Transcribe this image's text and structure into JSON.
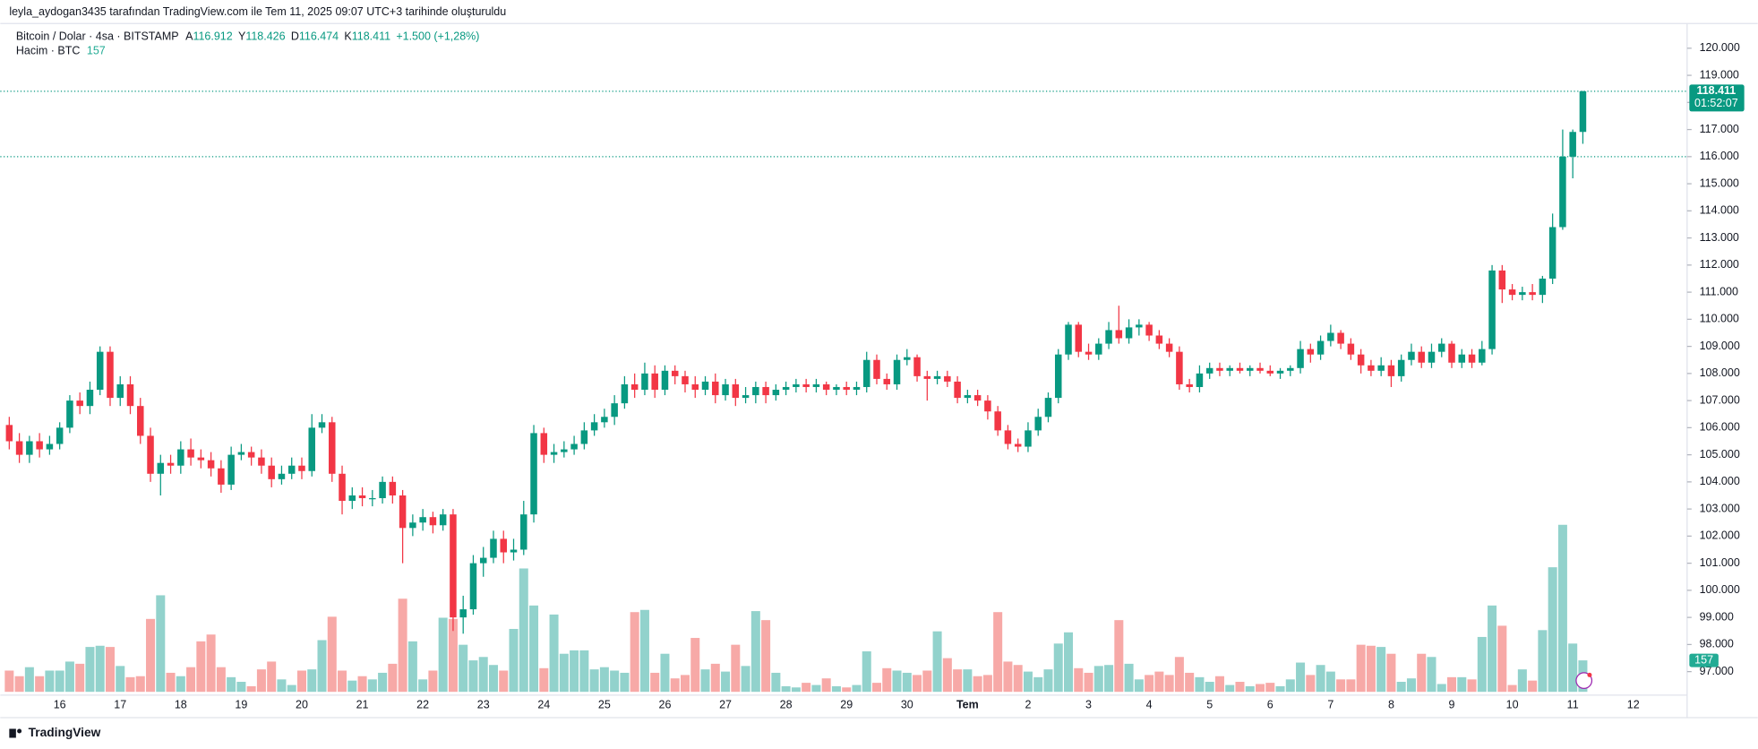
{
  "header": {
    "credit": "leyla_aydogan3435 tarafından TradingView.com ile Tem 11, 2025 09:07 UTC+3 tarihinde oluşturuldu",
    "brand": "TradingView"
  },
  "chart_data": {
    "type": "candlestick",
    "symbol": "Bitcoin / Dolar · 4sa · BITSTAMP",
    "fields": [
      {
        "key": "A",
        "text": "116.912"
      },
      {
        "key": "Y",
        "text": "118.426"
      },
      {
        "key": "D",
        "text": "116.474"
      },
      {
        "key": "K",
        "text": "118.411"
      }
    ],
    "change": "+1.500 (+1,28%)",
    "volume_title": "Hacim · BTC",
    "volume_text": "157",
    "last_price_label": "118.411",
    "countdown": "01:52:07",
    "volume_tag": "157",
    "ref_line": 116000,
    "up_color": "#089981",
    "down_color": "#f23645",
    "up_volume_color": "#92d2cc",
    "down_volume_color": "#f7a9a7",
    "grid": false,
    "xlabels": [
      "16",
      "17",
      "18",
      "19",
      "20",
      "21",
      "22",
      "23",
      "24",
      "25",
      "26",
      "27",
      "28",
      "29",
      "30",
      "Tem",
      "2",
      "3",
      "4",
      "5",
      "6",
      "7",
      "8",
      "9",
      "10",
      "11",
      "12"
    ],
    "ylim": [
      96100,
      120900
    ],
    "yticks": [
      {
        "value": 97000,
        "label": "97.000"
      },
      {
        "value": 98000,
        "label": "98.000"
      },
      {
        "value": 99000,
        "label": "99.000"
      },
      {
        "value": 100000,
        "label": "100.000"
      },
      {
        "value": 101000,
        "label": "101.000"
      },
      {
        "value": 102000,
        "label": "102.000"
      },
      {
        "value": 103000,
        "label": "103.000"
      },
      {
        "value": 104000,
        "label": "104.000"
      },
      {
        "value": 105000,
        "label": "105.000"
      },
      {
        "value": 106000,
        "label": "106.000"
      },
      {
        "value": 107000,
        "label": "107.000"
      },
      {
        "value": 108000,
        "label": "108.000"
      },
      {
        "value": 109000,
        "label": "109.000"
      },
      {
        "value": 110000,
        "label": "110.000"
      },
      {
        "value": 111000,
        "label": "111.000"
      },
      {
        "value": 112000,
        "label": "112.000"
      },
      {
        "value": 113000,
        "label": "113.000"
      },
      {
        "value": 114000,
        "label": "114.000"
      },
      {
        "value": 115000,
        "label": "115.000"
      },
      {
        "value": 116000,
        "label": "116.000"
      },
      {
        "value": 117000,
        "label": "117.000"
      },
      {
        "value": 118000,
        "label": "118.000"
      },
      {
        "value": 119000,
        "label": "119.000"
      },
      {
        "value": 120000,
        "label": "120.000"
      }
    ],
    "ohlc": [
      [
        106100,
        106400,
        105200,
        105500
      ],
      [
        105500,
        105800,
        104700,
        105000
      ],
      [
        105000,
        105700,
        104700,
        105500
      ],
      [
        105500,
        105800,
        104900,
        105200
      ],
      [
        105200,
        105700,
        105000,
        105400
      ],
      [
        105400,
        106200,
        105200,
        106000
      ],
      [
        106000,
        107200,
        105800,
        107000
      ],
      [
        107000,
        107300,
        106500,
        106800
      ],
      [
        106800,
        107700,
        106500,
        107400
      ],
      [
        107400,
        109000,
        107200,
        108800
      ],
      [
        108800,
        109000,
        106800,
        107100
      ],
      [
        107100,
        107900,
        106800,
        107600
      ],
      [
        107600,
        107900,
        106500,
        106800
      ],
      [
        106800,
        107100,
        105400,
        105700
      ],
      [
        105700,
        106000,
        104000,
        104300
      ],
      [
        104300,
        105000,
        103500,
        104700
      ],
      [
        104700,
        105000,
        104300,
        104600
      ],
      [
        104600,
        105500,
        104300,
        105200
      ],
      [
        105200,
        105600,
        104600,
        104900
      ],
      [
        104900,
        105200,
        104500,
        104800
      ],
      [
        104800,
        105100,
        104200,
        104500
      ],
      [
        104500,
        104800,
        103600,
        103900
      ],
      [
        103900,
        105300,
        103700,
        105000
      ],
      [
        105000,
        105400,
        104800,
        105100
      ],
      [
        105100,
        105300,
        104600,
        104900
      ],
      [
        104900,
        105200,
        104300,
        104600
      ],
      [
        104600,
        104900,
        103800,
        104100
      ],
      [
        104100,
        104600,
        103900,
        104300
      ],
      [
        104300,
        104900,
        104100,
        104600
      ],
      [
        104600,
        104900,
        104100,
        104400
      ],
      [
        104400,
        106500,
        104200,
        106000
      ],
      [
        106000,
        106500,
        105800,
        106200
      ],
      [
        106200,
        106400,
        104000,
        104300
      ],
      [
        104300,
        104600,
        102800,
        103300
      ],
      [
        103300,
        103800,
        103000,
        103500
      ],
      [
        103500,
        103800,
        103100,
        103400
      ],
      [
        103400,
        103700,
        103100,
        103400
      ],
      [
        103400,
        104200,
        103200,
        104000
      ],
      [
        104000,
        104200,
        103200,
        103500
      ],
      [
        103500,
        103700,
        101000,
        102300
      ],
      [
        102300,
        102800,
        102000,
        102500
      ],
      [
        102500,
        103000,
        102200,
        102700
      ],
      [
        102700,
        102900,
        102100,
        102400
      ],
      [
        102400,
        103000,
        102200,
        102800
      ],
      [
        102800,
        103000,
        98500,
        99000
      ],
      [
        99000,
        99800,
        98400,
        99300
      ],
      [
        99300,
        101300,
        99100,
        101000
      ],
      [
        101000,
        101600,
        100500,
        101200
      ],
      [
        101200,
        102200,
        101000,
        101900
      ],
      [
        101900,
        102200,
        101000,
        101400
      ],
      [
        101400,
        101900,
        101100,
        101500
      ],
      [
        101500,
        103300,
        101300,
        102800
      ],
      [
        102800,
        106100,
        102500,
        105800
      ],
      [
        105800,
        106000,
        104700,
        105000
      ],
      [
        105000,
        105400,
        104700,
        105100
      ],
      [
        105100,
        105500,
        104900,
        105200
      ],
      [
        105200,
        105700,
        105000,
        105400
      ],
      [
        105400,
        106200,
        105200,
        105900
      ],
      [
        105900,
        106500,
        105700,
        106200
      ],
      [
        106200,
        106700,
        106000,
        106400
      ],
      [
        106400,
        107200,
        106100,
        106900
      ],
      [
        106900,
        107900,
        106700,
        107600
      ],
      [
        107600,
        108000,
        107100,
        107400
      ],
      [
        107400,
        108400,
        107200,
        108000
      ],
      [
        108000,
        108300,
        107100,
        107400
      ],
      [
        107400,
        108300,
        107200,
        108100
      ],
      [
        108100,
        108300,
        107600,
        107900
      ],
      [
        107900,
        108100,
        107300,
        107600
      ],
      [
        107600,
        107900,
        107100,
        107400
      ],
      [
        107400,
        107900,
        107200,
        107700
      ],
      [
        107700,
        108000,
        106900,
        107200
      ],
      [
        107200,
        107800,
        107000,
        107600
      ],
      [
        107600,
        107800,
        106800,
        107100
      ],
      [
        107100,
        107500,
        106900,
        107200
      ],
      [
        107200,
        107700,
        106900,
        107500
      ],
      [
        107500,
        107700,
        106900,
        107200
      ],
      [
        107200,
        107600,
        107000,
        107400
      ],
      [
        107400,
        107700,
        107200,
        107500
      ],
      [
        107500,
        107800,
        107300,
        107600
      ],
      [
        107600,
        107800,
        107300,
        107500
      ],
      [
        107500,
        107800,
        107300,
        107600
      ],
      [
        107600,
        107700,
        107200,
        107400
      ],
      [
        107400,
        107600,
        107200,
        107500
      ],
      [
        107500,
        107700,
        107200,
        107400
      ],
      [
        107400,
        107700,
        107200,
        107500
      ],
      [
        107500,
        108800,
        107300,
        108500
      ],
      [
        108500,
        108700,
        107600,
        107800
      ],
      [
        107800,
        108000,
        107400,
        107600
      ],
      [
        107600,
        108700,
        107400,
        108500
      ],
      [
        108500,
        108900,
        108300,
        108600
      ],
      [
        108600,
        108700,
        107700,
        107900
      ],
      [
        107900,
        108100,
        107000,
        107800
      ],
      [
        107800,
        108100,
        107600,
        107900
      ],
      [
        107900,
        108100,
        107500,
        107700
      ],
      [
        107700,
        107900,
        106900,
        107100
      ],
      [
        107100,
        107400,
        106900,
        107200
      ],
      [
        107200,
        107400,
        106800,
        107000
      ],
      [
        107000,
        107200,
        106300,
        106600
      ],
      [
        106600,
        106800,
        105700,
        105900
      ],
      [
        105900,
        106100,
        105200,
        105400
      ],
      [
        105400,
        105600,
        105100,
        105300
      ],
      [
        105300,
        106200,
        105100,
        105900
      ],
      [
        105900,
        106700,
        105700,
        106400
      ],
      [
        106400,
        107300,
        106200,
        107100
      ],
      [
        107100,
        108900,
        106900,
        108700
      ],
      [
        108700,
        109900,
        108500,
        109800
      ],
      [
        109800,
        109900,
        108600,
        108800
      ],
      [
        108800,
        109100,
        108500,
        108700
      ],
      [
        108700,
        109300,
        108500,
        109100
      ],
      [
        109100,
        109900,
        108900,
        109600
      ],
      [
        109600,
        110500,
        109100,
        109300
      ],
      [
        109300,
        110000,
        109100,
        109700
      ],
      [
        109700,
        110000,
        109400,
        109800
      ],
      [
        109800,
        109900,
        109200,
        109400
      ],
      [
        109400,
        109600,
        108900,
        109100
      ],
      [
        109100,
        109300,
        108600,
        108800
      ],
      [
        108800,
        109000,
        107400,
        107600
      ],
      [
        107600,
        107800,
        107300,
        107500
      ],
      [
        107500,
        108300,
        107300,
        108000
      ],
      [
        108000,
        108400,
        107800,
        108200
      ],
      [
        108200,
        108400,
        107900,
        108100
      ],
      [
        108100,
        108300,
        107900,
        108200
      ],
      [
        108200,
        108400,
        108000,
        108100
      ],
      [
        108100,
        108300,
        107900,
        108200
      ],
      [
        108200,
        108400,
        108000,
        108100
      ],
      [
        108100,
        108300,
        107900,
        108000
      ],
      [
        108000,
        108200,
        107800,
        108100
      ],
      [
        108100,
        108300,
        107900,
        108200
      ],
      [
        108200,
        109200,
        108000,
        108900
      ],
      [
        108900,
        109100,
        108400,
        108700
      ],
      [
        108700,
        109400,
        108500,
        109200
      ],
      [
        109200,
        109800,
        109000,
        109500
      ],
      [
        109500,
        109600,
        108900,
        109100
      ],
      [
        109100,
        109300,
        108500,
        108700
      ],
      [
        108700,
        108900,
        108000,
        108300
      ],
      [
        108300,
        108500,
        107900,
        108100
      ],
      [
        108100,
        108600,
        107900,
        108300
      ],
      [
        108300,
        108500,
        107500,
        107900
      ],
      [
        107900,
        108700,
        107700,
        108500
      ],
      [
        108500,
        109100,
        108300,
        108800
      ],
      [
        108800,
        109000,
        108200,
        108400
      ],
      [
        108400,
        109100,
        108200,
        108800
      ],
      [
        108800,
        109300,
        108600,
        109100
      ],
      [
        109100,
        109200,
        108200,
        108400
      ],
      [
        108400,
        108900,
        108200,
        108700
      ],
      [
        108700,
        108900,
        108200,
        108400
      ],
      [
        108400,
        109200,
        108300,
        108900
      ],
      [
        108900,
        112000,
        108700,
        111800
      ],
      [
        111800,
        112000,
        110600,
        111100
      ],
      [
        111100,
        111300,
        110700,
        110900
      ],
      [
        110900,
        111200,
        110700,
        111000
      ],
      [
        111000,
        111300,
        110700,
        110900
      ],
      [
        110900,
        111600,
        110600,
        111500
      ],
      [
        111500,
        113900,
        111300,
        113400
      ],
      [
        113400,
        117000,
        113300,
        116000
      ],
      [
        116000,
        117000,
        115200,
        116912
      ],
      [
        116912,
        118426,
        116474,
        118411
      ]
    ],
    "volume": [
      106,
      78,
      123,
      78,
      106,
      106,
      151,
      140,
      224,
      230,
      224,
      129,
      73,
      78,
      364,
      482,
      95,
      78,
      123,
      252,
      286,
      123,
      73,
      50,
      28,
      112,
      151,
      62,
      34,
      106,
      112,
      258,
      375,
      106,
      56,
      78,
      62,
      95,
      140,
      465,
      252,
      62,
      106,
      370,
      364,
      235,
      157,
      174,
      134,
      106,
      314,
      616,
      431,
      118,
      386,
      190,
      207,
      207,
      112,
      123,
      106,
      95,
      398,
      409,
      95,
      190,
      67,
      84,
      269,
      112,
      140,
      101,
      235,
      129,
      403,
      358,
      95,
      28,
      22,
      45,
      34,
      67,
      28,
      22,
      34,
      202,
      45,
      118,
      106,
      95,
      84,
      106,
      302,
      168,
      112,
      112,
      78,
      84,
      398,
      151,
      134,
      101,
      73,
      112,
      241,
      297,
      118,
      95,
      129,
      134,
      358,
      140,
      62,
      84,
      101,
      84,
      174,
      95,
      73,
      50,
      78,
      34,
      50,
      28,
      39,
      45,
      28,
      62,
      146,
      84,
      134,
      101,
      62,
      62,
      235,
      230,
      224,
      190,
      50,
      67,
      190,
      174,
      39,
      73,
      73,
      62,
      274,
      431,
      330,
      34,
      112,
      56,
      308,
      622,
      834,
      241,
      157
    ]
  }
}
